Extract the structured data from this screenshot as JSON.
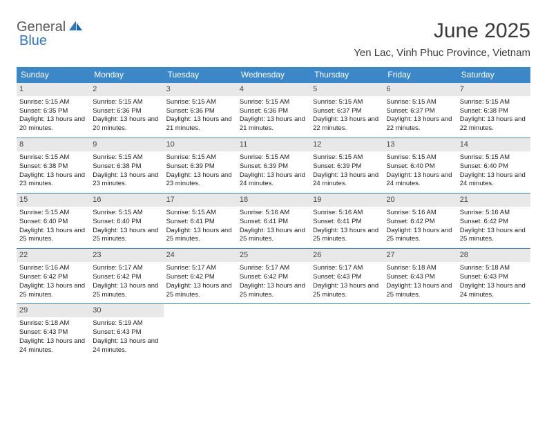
{
  "brand": {
    "part1": "General",
    "part2": "Blue"
  },
  "title": "June 2025",
  "location": "Yen Lac, Vinh Phuc Province, Vietnam",
  "colors": {
    "header_bg": "#3b87c8",
    "header_text": "#ffffff",
    "daynum_bg": "#e8e8e8",
    "border": "#3b87c8",
    "logo_gray": "#5a5a5a",
    "logo_blue": "#2f78bf"
  },
  "weekdays": [
    "Sunday",
    "Monday",
    "Tuesday",
    "Wednesday",
    "Thursday",
    "Friday",
    "Saturday"
  ],
  "days": [
    {
      "n": "1",
      "sr": "5:15 AM",
      "ss": "6:35 PM",
      "dl": "13 hours and 20 minutes."
    },
    {
      "n": "2",
      "sr": "5:15 AM",
      "ss": "6:36 PM",
      "dl": "13 hours and 20 minutes."
    },
    {
      "n": "3",
      "sr": "5:15 AM",
      "ss": "6:36 PM",
      "dl": "13 hours and 21 minutes."
    },
    {
      "n": "4",
      "sr": "5:15 AM",
      "ss": "6:36 PM",
      "dl": "13 hours and 21 minutes."
    },
    {
      "n": "5",
      "sr": "5:15 AM",
      "ss": "6:37 PM",
      "dl": "13 hours and 22 minutes."
    },
    {
      "n": "6",
      "sr": "5:15 AM",
      "ss": "6:37 PM",
      "dl": "13 hours and 22 minutes."
    },
    {
      "n": "7",
      "sr": "5:15 AM",
      "ss": "6:38 PM",
      "dl": "13 hours and 22 minutes."
    },
    {
      "n": "8",
      "sr": "5:15 AM",
      "ss": "6:38 PM",
      "dl": "13 hours and 23 minutes."
    },
    {
      "n": "9",
      "sr": "5:15 AM",
      "ss": "6:38 PM",
      "dl": "13 hours and 23 minutes."
    },
    {
      "n": "10",
      "sr": "5:15 AM",
      "ss": "6:39 PM",
      "dl": "13 hours and 23 minutes."
    },
    {
      "n": "11",
      "sr": "5:15 AM",
      "ss": "6:39 PM",
      "dl": "13 hours and 24 minutes."
    },
    {
      "n": "12",
      "sr": "5:15 AM",
      "ss": "6:39 PM",
      "dl": "13 hours and 24 minutes."
    },
    {
      "n": "13",
      "sr": "5:15 AM",
      "ss": "6:40 PM",
      "dl": "13 hours and 24 minutes."
    },
    {
      "n": "14",
      "sr": "5:15 AM",
      "ss": "6:40 PM",
      "dl": "13 hours and 24 minutes."
    },
    {
      "n": "15",
      "sr": "5:15 AM",
      "ss": "6:40 PM",
      "dl": "13 hours and 25 minutes."
    },
    {
      "n": "16",
      "sr": "5:15 AM",
      "ss": "6:40 PM",
      "dl": "13 hours and 25 minutes."
    },
    {
      "n": "17",
      "sr": "5:15 AM",
      "ss": "6:41 PM",
      "dl": "13 hours and 25 minutes."
    },
    {
      "n": "18",
      "sr": "5:16 AM",
      "ss": "6:41 PM",
      "dl": "13 hours and 25 minutes."
    },
    {
      "n": "19",
      "sr": "5:16 AM",
      "ss": "6:41 PM",
      "dl": "13 hours and 25 minutes."
    },
    {
      "n": "20",
      "sr": "5:16 AM",
      "ss": "6:42 PM",
      "dl": "13 hours and 25 minutes."
    },
    {
      "n": "21",
      "sr": "5:16 AM",
      "ss": "6:42 PM",
      "dl": "13 hours and 25 minutes."
    },
    {
      "n": "22",
      "sr": "5:16 AM",
      "ss": "6:42 PM",
      "dl": "13 hours and 25 minutes."
    },
    {
      "n": "23",
      "sr": "5:17 AM",
      "ss": "6:42 PM",
      "dl": "13 hours and 25 minutes."
    },
    {
      "n": "24",
      "sr": "5:17 AM",
      "ss": "6:42 PM",
      "dl": "13 hours and 25 minutes."
    },
    {
      "n": "25",
      "sr": "5:17 AM",
      "ss": "6:42 PM",
      "dl": "13 hours and 25 minutes."
    },
    {
      "n": "26",
      "sr": "5:17 AM",
      "ss": "6:43 PM",
      "dl": "13 hours and 25 minutes."
    },
    {
      "n": "27",
      "sr": "5:18 AM",
      "ss": "6:43 PM",
      "dl": "13 hours and 25 minutes."
    },
    {
      "n": "28",
      "sr": "5:18 AM",
      "ss": "6:43 PM",
      "dl": "13 hours and 24 minutes."
    },
    {
      "n": "29",
      "sr": "5:18 AM",
      "ss": "6:43 PM",
      "dl": "13 hours and 24 minutes."
    },
    {
      "n": "30",
      "sr": "5:19 AM",
      "ss": "6:43 PM",
      "dl": "13 hours and 24 minutes."
    }
  ],
  "labels": {
    "sunrise": "Sunrise:",
    "sunset": "Sunset:",
    "daylight": "Daylight:"
  }
}
